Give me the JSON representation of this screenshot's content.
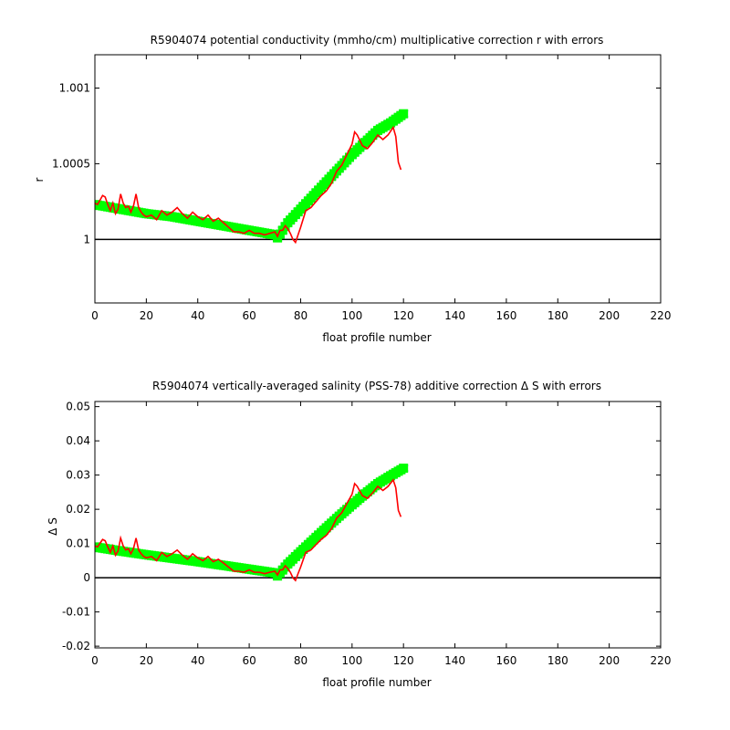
{
  "chart_data": [
    {
      "type": "line",
      "title": "R5904074 potential conductivity (mmho/cm) multiplicative correction r with errors",
      "xlabel": "float profile number",
      "ylabel": "r",
      "xlim": [
        0,
        220
      ],
      "ylim": [
        0.99958,
        1.00122
      ],
      "xticks": [
        0,
        20,
        40,
        60,
        80,
        100,
        120,
        140,
        160,
        180,
        200,
        220
      ],
      "xtick_labels": [
        "0",
        "20",
        "40",
        "60",
        "80",
        "100",
        "120",
        "140",
        "160",
        "180",
        "200",
        "220"
      ],
      "yticks": [
        1.0,
        1.0005,
        1.001
      ],
      "ytick_labels": [
        "1",
        "1.0005",
        "1.001"
      ],
      "reference_line": 1.0,
      "grid": false,
      "series": [
        {
          "role": "fit with errors",
          "color": "#00ff00",
          "error_color": "#0000ff",
          "x": [
            0,
            10,
            20,
            30,
            40,
            50,
            60,
            70,
            71,
            75,
            80,
            85,
            90,
            95,
            100,
            105,
            110,
            115,
            120
          ],
          "y": [
            1.00023,
            1.0002,
            1.00017,
            1.00015,
            1.00012,
            1.00009,
            1.00006,
            1.00003,
            1.00001,
            1.00011,
            1.0002,
            1.00029,
            1.00038,
            1.00047,
            1.00056,
            1.00064,
            1.00072,
            1.00077,
            1.00083
          ],
          "err": [
            1.5e-05,
            1.5e-05,
            1.5e-05,
            1.5e-05,
            1.5e-05,
            1.5e-05,
            1.5e-05,
            2e-05,
            2e-05,
            2e-05,
            2e-05,
            2e-05,
            2e-05,
            2e-05,
            2e-05,
            2e-05,
            2e-05,
            2e-05,
            2e-05
          ]
        },
        {
          "role": "raw estimate",
          "color": "#ff0000",
          "x": [
            0,
            1,
            2,
            3,
            4,
            5,
            6,
            7,
            8,
            9,
            10,
            11,
            12,
            13,
            14,
            15,
            16,
            17,
            18,
            19,
            20,
            22,
            24,
            26,
            28,
            30,
            32,
            34,
            36,
            38,
            40,
            42,
            44,
            46,
            48,
            50,
            52,
            54,
            56,
            58,
            60,
            62,
            64,
            66,
            68,
            70,
            71,
            72,
            73,
            74,
            75,
            76,
            77,
            78,
            79,
            80,
            82,
            84,
            86,
            88,
            90,
            92,
            94,
            96,
            98,
            100,
            101,
            102,
            104,
            106,
            108,
            110,
            112,
            114,
            116,
            117,
            118,
            119
          ],
          "y": [
            1.00024,
            1.00023,
            1.00026,
            1.00029,
            1.00028,
            1.00023,
            1.00019,
            1.00024,
            1.00017,
            1.0002,
            1.0003,
            1.00024,
            1.00021,
            1.00022,
            1.00018,
            1.00022,
            1.0003,
            1.00021,
            1.00018,
            1.00016,
            1.00015,
            1.00016,
            1.00013,
            1.00019,
            1.00016,
            1.00018,
            1.00021,
            1.00017,
            1.00014,
            1.00018,
            1.00015,
            1.00013,
            1.00016,
            1.00012,
            1.00014,
            1.00011,
            1.00008,
            1.00005,
            1.00005,
            1.00004,
            1.00006,
            1.00004,
            1.00004,
            1.00003,
            1.00004,
            1.00005,
            1.00002,
            1.00006,
            1.00006,
            1.00009,
            1.00007,
            1.00004,
            1.0,
            0.99998,
            1.00003,
            1.00008,
            1.00019,
            1.00021,
            1.00025,
            1.00029,
            1.00032,
            1.00037,
            1.00045,
            1.00049,
            1.00056,
            1.00063,
            1.00071,
            1.00069,
            1.00062,
            1.0006,
            1.00064,
            1.00069,
            1.00066,
            1.00069,
            1.00074,
            1.00068,
            1.00051,
            1.00046
          ]
        }
      ]
    },
    {
      "type": "line",
      "title": "R5904074 vertically-averaged salinity (PSS-78) additive correction Δ S with errors",
      "xlabel": "float profile number",
      "ylabel": "Δ S",
      "xlim": [
        0,
        220
      ],
      "ylim": [
        -0.0205,
        0.0515
      ],
      "xticks": [
        0,
        20,
        40,
        60,
        80,
        100,
        120,
        140,
        160,
        180,
        200,
        220
      ],
      "xtick_labels": [
        "0",
        "20",
        "40",
        "60",
        "80",
        "100",
        "120",
        "140",
        "160",
        "180",
        "200",
        "220"
      ],
      "yticks": [
        -0.02,
        -0.01,
        0,
        0.01,
        0.02,
        0.03,
        0.04,
        0.05
      ],
      "ytick_labels": [
        "-0.02",
        "-0.01",
        "0",
        "0.01",
        "0.02",
        "0.03",
        "0.04",
        "0.05"
      ],
      "reference_line": 0,
      "grid": false,
      "series": [
        {
          "role": "fit with errors",
          "color": "#00ff00",
          "error_color": "#0000ff",
          "x": [
            0,
            10,
            20,
            30,
            40,
            50,
            60,
            70,
            71,
            75,
            80,
            85,
            90,
            95,
            100,
            105,
            110,
            115,
            120
          ],
          "y": [
            0.009,
            0.0078,
            0.0067,
            0.0057,
            0.0047,
            0.0036,
            0.0025,
            0.0014,
            0.0005,
            0.004,
            0.0076,
            0.0111,
            0.0146,
            0.018,
            0.0213,
            0.0245,
            0.0275,
            0.0298,
            0.032
          ],
          "err": [
            0.0006,
            0.0006,
            0.0006,
            0.0006,
            0.0006,
            0.0006,
            0.0006,
            0.0008,
            0.0008,
            0.0008,
            0.0008,
            0.0008,
            0.0008,
            0.0008,
            0.0008,
            0.0008,
            0.0008,
            0.0008,
            0.0008
          ]
        },
        {
          "role": "raw estimate",
          "color": "#ff0000",
          "x": [
            0,
            1,
            2,
            3,
            4,
            5,
            6,
            7,
            8,
            9,
            10,
            11,
            12,
            13,
            14,
            15,
            16,
            17,
            18,
            19,
            20,
            22,
            24,
            26,
            28,
            30,
            32,
            34,
            36,
            38,
            40,
            42,
            44,
            46,
            48,
            50,
            52,
            54,
            56,
            58,
            60,
            62,
            64,
            66,
            68,
            70,
            71,
            72,
            73,
            74,
            75,
            76,
            77,
            78,
            79,
            80,
            82,
            84,
            86,
            88,
            90,
            92,
            94,
            96,
            98,
            100,
            101,
            102,
            104,
            106,
            108,
            110,
            112,
            114,
            116,
            117,
            118,
            119
          ],
          "y": [
            0.0093,
            0.009,
            0.0101,
            0.0112,
            0.0108,
            0.009,
            0.0074,
            0.0093,
            0.0066,
            0.0078,
            0.0116,
            0.0093,
            0.0081,
            0.0085,
            0.007,
            0.0085,
            0.0116,
            0.0081,
            0.007,
            0.0062,
            0.0058,
            0.0062,
            0.005,
            0.0074,
            0.0062,
            0.007,
            0.0081,
            0.0066,
            0.0054,
            0.007,
            0.0058,
            0.005,
            0.0062,
            0.0047,
            0.0054,
            0.0043,
            0.0031,
            0.0019,
            0.0019,
            0.0016,
            0.0023,
            0.0016,
            0.0016,
            0.0012,
            0.0016,
            0.0019,
            0.0008,
            0.0023,
            0.0023,
            0.0035,
            0.0027,
            0.0016,
            0.0,
            -0.0008,
            0.0012,
            0.0031,
            0.0074,
            0.0081,
            0.0097,
            0.0112,
            0.0124,
            0.0143,
            0.0174,
            0.019,
            0.0217,
            0.0244,
            0.0275,
            0.0267,
            0.024,
            0.0232,
            0.0248,
            0.0267,
            0.0255,
            0.0267,
            0.0286,
            0.0263,
            0.0197,
            0.0178
          ]
        }
      ]
    }
  ]
}
